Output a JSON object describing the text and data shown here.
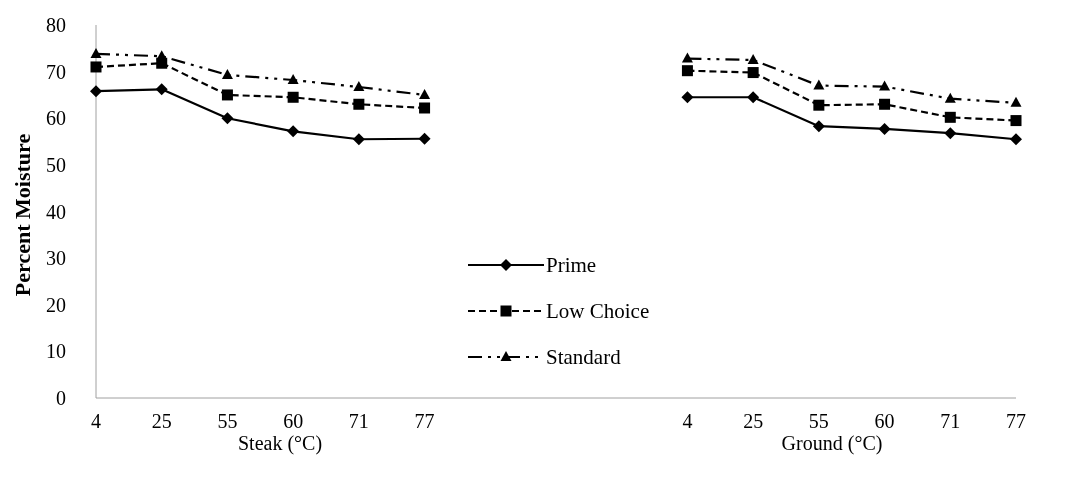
{
  "chart_data": {
    "type": "line",
    "ylabel": "Percent Moisture",
    "annotations": [
      "Steak (°C)",
      "Ground (°C)"
    ],
    "categories": [
      "4",
      "25",
      "55",
      "60",
      "71",
      "77",
      null,
      null,
      null,
      "4",
      "25",
      "55",
      "60",
      "71",
      "77"
    ],
    "ylim": [
      0,
      80
    ],
    "yticks": [
      0,
      10,
      20,
      30,
      40,
      50,
      60,
      70,
      80
    ],
    "grid": false,
    "legend": "center",
    "series": [
      {
        "name": "Prime",
        "color": "#000000",
        "marker": "diamond",
        "line_style": "solid",
        "values": [
          65.8,
          66.2,
          60,
          57.2,
          55.5,
          55.6,
          null,
          null,
          null,
          64.5,
          64.5,
          58.3,
          57.7,
          56.8,
          55.5
        ]
      },
      {
        "name": "Low Choice",
        "color": "#000000",
        "marker": "square",
        "line_style": "dashed",
        "values": [
          71,
          71.8,
          65,
          64.5,
          63,
          62.2,
          null,
          null,
          null,
          70.2,
          69.8,
          62.8,
          63,
          60.2,
          59.5
        ]
      },
      {
        "name": "Standard",
        "color": "#000000",
        "marker": "triangle",
        "line_style": "dotted",
        "values": [
          73.8,
          73.3,
          69.3,
          68.2,
          66.7,
          65,
          null,
          null,
          null,
          72.8,
          72.5,
          67,
          66.8,
          64.2,
          63.3
        ]
      }
    ]
  }
}
